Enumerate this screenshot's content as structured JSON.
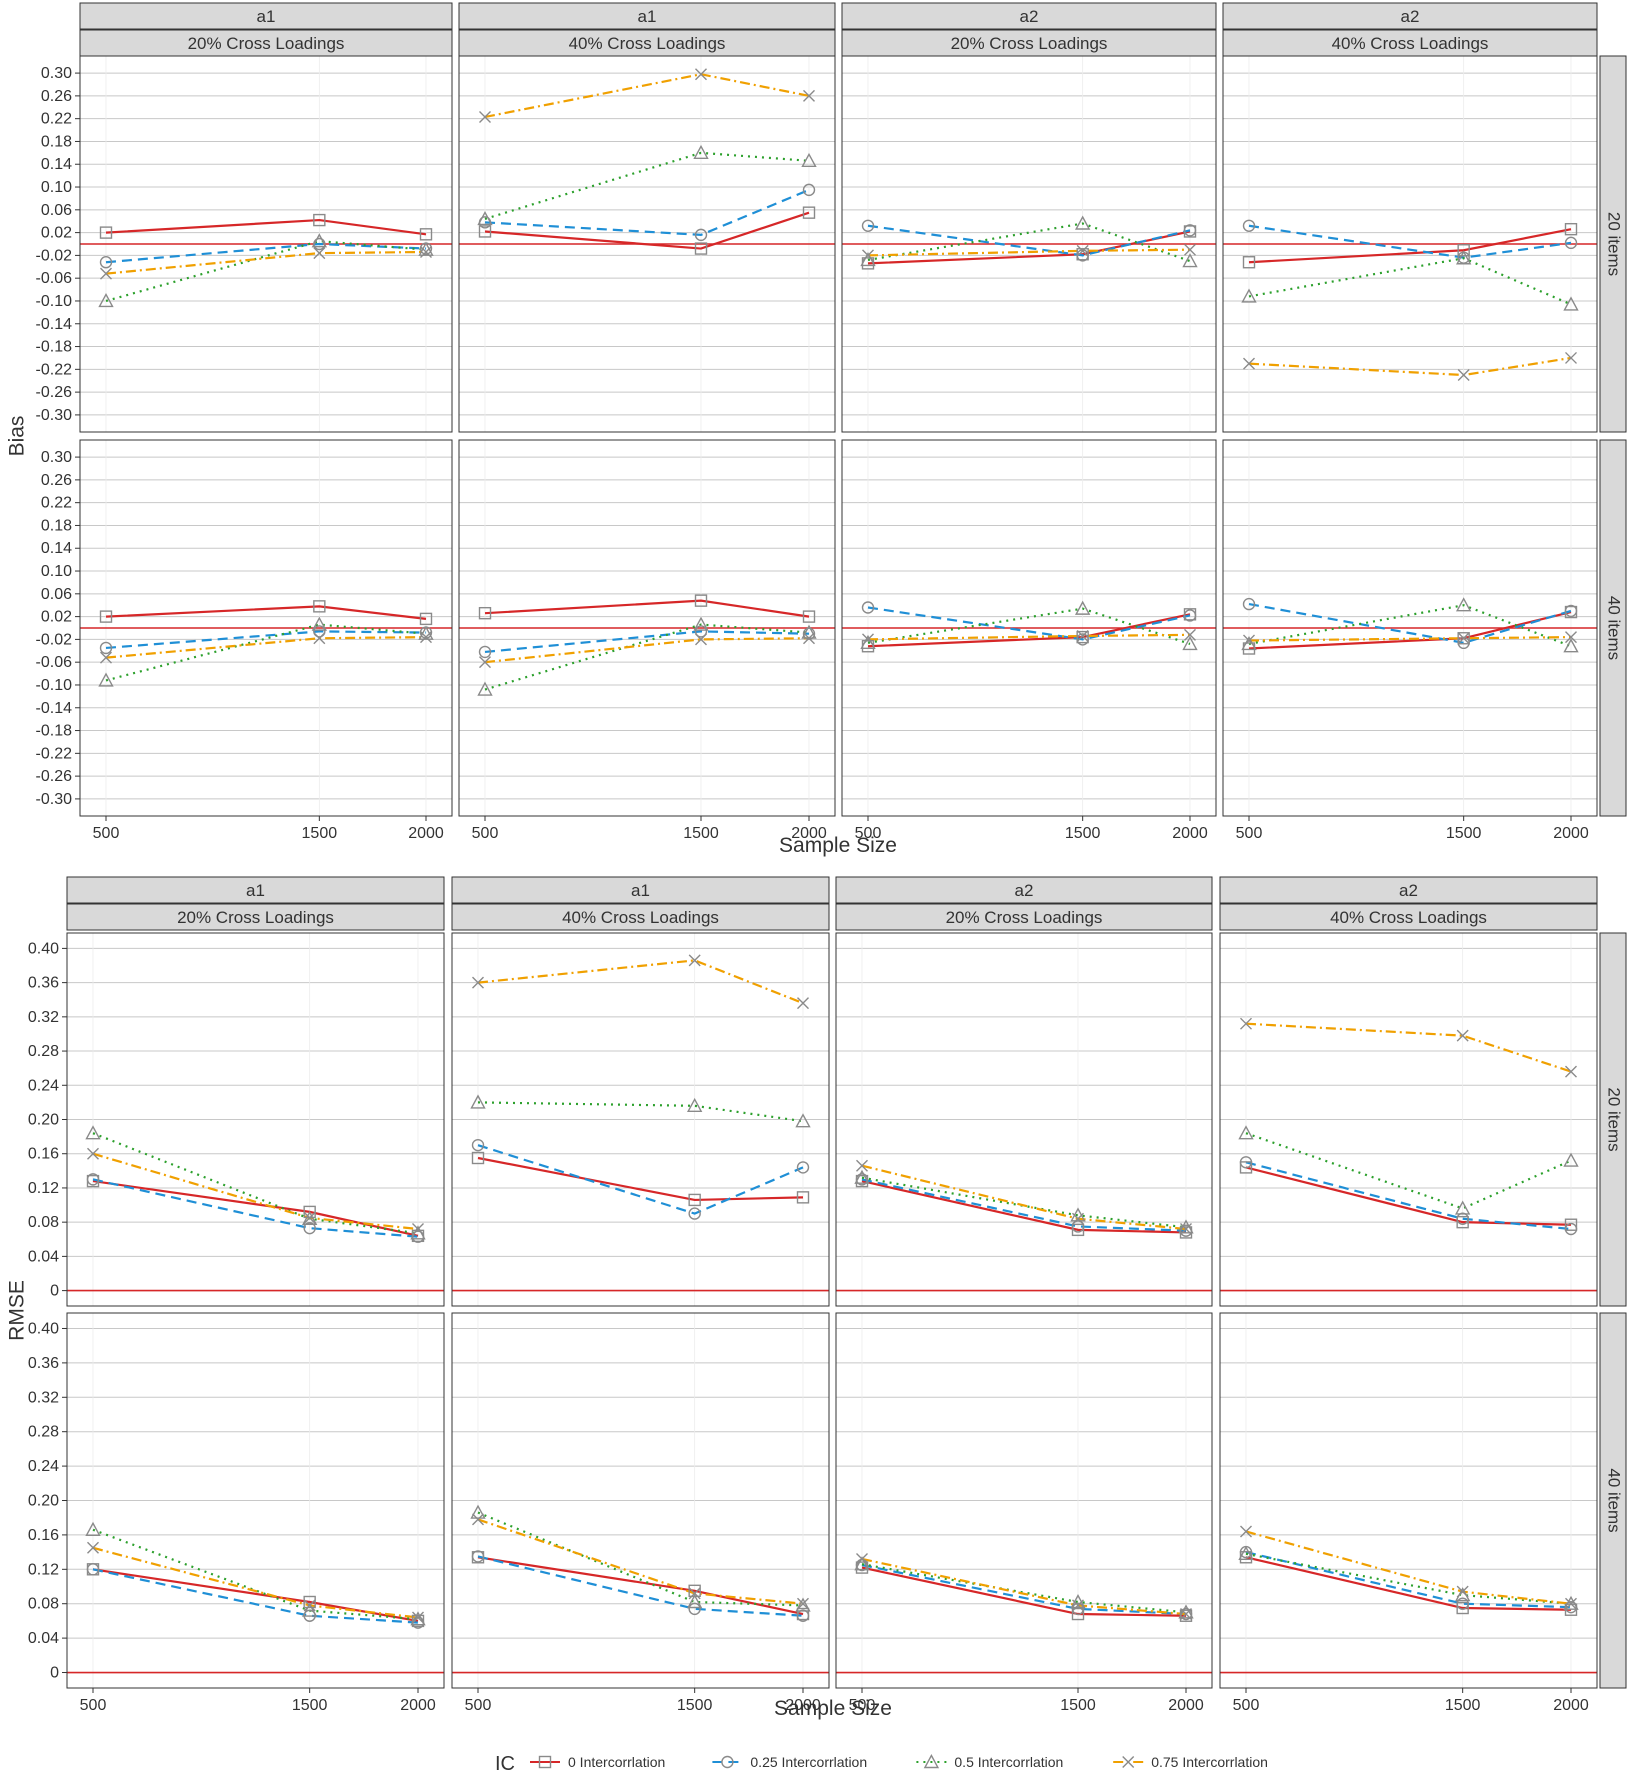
{
  "figure": {
    "legend_title": "IC",
    "legend_position": "bottom",
    "series_styles": [
      {
        "name": "0 Intercorrlation",
        "color": "#d62728",
        "dash": "",
        "marker": "square"
      },
      {
        "name": "0.25 Intercorrlation",
        "color": "#1f8fd6",
        "dash": "10,6",
        "marker": "circle"
      },
      {
        "name": "0.5 Intercorrlation",
        "color": "#2ca02c",
        "dash": "2,5",
        "marker": "triangle"
      },
      {
        "name": "0.75 Intercorrlation",
        "color": "#f0a000",
        "dash": "10,4,2,4",
        "marker": "x"
      }
    ],
    "reference_line_color": "#d62728"
  },
  "chart_data": [
    {
      "type": "line",
      "ylabel": "Bias",
      "xlabel": "Sample Size",
      "x": [
        500,
        1500,
        2000
      ],
      "xticks": [
        "500",
        "1500",
        "2000"
      ],
      "ylim": [
        -0.33,
        0.33
      ],
      "yticks": [
        "0.30",
        "0.26",
        "0.22",
        "0.18",
        "0.14",
        "0.10",
        "0.06",
        "0.02",
        "-0.02",
        "-0.06",
        "-0.10",
        "-0.14",
        "-0.18",
        "-0.22",
        "-0.26",
        "-0.30"
      ],
      "ytick_values": [
        0.3,
        0.26,
        0.22,
        0.18,
        0.14,
        0.1,
        0.06,
        0.02,
        -0.02,
        -0.06,
        -0.1,
        -0.14,
        -0.18,
        -0.22,
        -0.26,
        -0.3
      ],
      "reference_line": -0.0,
      "columns": [
        {
          "param": "a1",
          "condition": "20% Cross Loadings"
        },
        {
          "param": "a1",
          "condition": "40% Cross Loadings"
        },
        {
          "param": "a2",
          "condition": "20% Cross Loadings"
        },
        {
          "param": "a2",
          "condition": "40% Cross Loadings"
        }
      ],
      "rows": [
        "20 items",
        "40 items"
      ],
      "grid": true,
      "panels": [
        [
          {
            "series": [
              {
                "name": "0 Intercorrlation",
                "values": [
                  0.02,
                  0.042,
                  0.017
                ]
              },
              {
                "name": "0.25 Intercorrlation",
                "values": [
                  -0.032,
                  -0.0,
                  -0.008
                ]
              },
              {
                "name": "0.5 Intercorrlation",
                "values": [
                  -0.1,
                  0.005,
                  -0.01
                ]
              },
              {
                "name": "0.75 Intercorrlation",
                "values": [
                  -0.052,
                  -0.016,
                  -0.014
                ]
              }
            ]
          },
          {
            "series": [
              {
                "name": "0 Intercorrlation",
                "values": [
                  0.022,
                  -0.008,
                  0.055
                ]
              },
              {
                "name": "0.25 Intercorrlation",
                "values": [
                  0.038,
                  0.016,
                  0.095
                ]
              },
              {
                "name": "0.5 Intercorrlation",
                "values": [
                  0.044,
                  0.16,
                  0.146
                ]
              },
              {
                "name": "0.75 Intercorrlation",
                "values": [
                  0.223,
                  0.298,
                  0.26
                ]
              }
            ]
          },
          {
            "series": [
              {
                "name": "0 Intercorrlation",
                "values": [
                  -0.034,
                  -0.018,
                  0.022
                ]
              },
              {
                "name": "0.25 Intercorrlation",
                "values": [
                  0.032,
                  -0.02,
                  0.024
                ]
              },
              {
                "name": "0.5 Intercorrlation",
                "values": [
                  -0.028,
                  0.036,
                  -0.03
                ]
              },
              {
                "name": "0.75 Intercorrlation",
                "values": [
                  -0.02,
                  -0.012,
                  -0.01
                ]
              }
            ]
          },
          {
            "series": [
              {
                "name": "0 Intercorrlation",
                "values": [
                  -0.032,
                  -0.011,
                  0.026
                ]
              },
              {
                "name": "0.25 Intercorrlation",
                "values": [
                  0.032,
                  -0.024,
                  0.002
                ]
              },
              {
                "name": "0.5 Intercorrlation",
                "values": [
                  -0.092,
                  -0.025,
                  -0.106
                ]
              },
              {
                "name": "0.75 Intercorrlation",
                "values": [
                  -0.21,
                  -0.23,
                  -0.2
                ]
              }
            ]
          }
        ],
        [
          {
            "series": [
              {
                "name": "0 Intercorrlation",
                "values": [
                  0.02,
                  0.038,
                  0.016
                ]
              },
              {
                "name": "0.25 Intercorrlation",
                "values": [
                  -0.035,
                  -0.006,
                  -0.008
                ]
              },
              {
                "name": "0.5 Intercorrlation",
                "values": [
                  -0.092,
                  0.006,
                  -0.01
                ]
              },
              {
                "name": "0.75 Intercorrlation",
                "values": [
                  -0.052,
                  -0.018,
                  -0.016
                ]
              }
            ]
          },
          {
            "series": [
              {
                "name": "0 Intercorrlation",
                "values": [
                  0.026,
                  0.048,
                  0.02
                ]
              },
              {
                "name": "0.25 Intercorrlation",
                "values": [
                  -0.042,
                  -0.006,
                  -0.01
                ]
              },
              {
                "name": "0.5 Intercorrlation",
                "values": [
                  -0.108,
                  0.006,
                  -0.008
                ]
              },
              {
                "name": "0.75 Intercorrlation",
                "values": [
                  -0.06,
                  -0.02,
                  -0.018
                ]
              }
            ]
          },
          {
            "series": [
              {
                "name": "0 Intercorrlation",
                "values": [
                  -0.032,
                  -0.016,
                  0.024
                ]
              },
              {
                "name": "0.25 Intercorrlation",
                "values": [
                  0.036,
                  -0.02,
                  0.022
                ]
              },
              {
                "name": "0.5 Intercorrlation",
                "values": [
                  -0.026,
                  0.034,
                  -0.028
                ]
              },
              {
                "name": "0.75 Intercorrlation",
                "values": [
                  -0.02,
                  -0.014,
                  -0.012
                ]
              }
            ]
          },
          {
            "series": [
              {
                "name": "0 Intercorrlation",
                "values": [
                  -0.036,
                  -0.018,
                  0.028
                ]
              },
              {
                "name": "0.25 Intercorrlation",
                "values": [
                  0.042,
                  -0.026,
                  0.03
                ]
              },
              {
                "name": "0.5 Intercorrlation",
                "values": [
                  -0.028,
                  0.04,
                  -0.032
                ]
              },
              {
                "name": "0.75 Intercorrlation",
                "values": [
                  -0.022,
                  -0.018,
                  -0.016
                ]
              }
            ]
          }
        ]
      ]
    },
    {
      "type": "line",
      "ylabel": "RMSE",
      "xlabel": "Sample Size",
      "x": [
        500,
        1500,
        2000
      ],
      "xticks": [
        "500",
        "1500",
        "2000"
      ],
      "ylim": [
        -0.018,
        0.418
      ],
      "yticks": [
        "0.40",
        "0.36",
        "0.32",
        "0.28",
        "0.24",
        "0.20",
        "0.16",
        "0.12",
        "0.08",
        "0.04",
        "0"
      ],
      "ytick_values": [
        0.4,
        0.36,
        0.32,
        0.28,
        0.24,
        0.2,
        0.16,
        0.12,
        0.08,
        0.04,
        0
      ],
      "reference_line": 0,
      "columns": [
        {
          "param": "a1",
          "condition": "20% Cross Loadings"
        },
        {
          "param": "a1",
          "condition": "40% Cross Loadings"
        },
        {
          "param": "a2",
          "condition": "20% Cross Loadings"
        },
        {
          "param": "a2",
          "condition": "40% Cross Loadings"
        }
      ],
      "rows": [
        "20 items",
        "40 items"
      ],
      "grid": true,
      "panels": [
        [
          {
            "series": [
              {
                "name": "0 Intercorrlation",
                "values": [
                  0.128,
                  0.092,
                  0.064
                ]
              },
              {
                "name": "0.25 Intercorrlation",
                "values": [
                  0.13,
                  0.073,
                  0.063
                ]
              },
              {
                "name": "0.5 Intercorrlation",
                "values": [
                  0.184,
                  0.084,
                  0.067
                ]
              },
              {
                "name": "0.75 Intercorrlation",
                "values": [
                  0.16,
                  0.085,
                  0.072
                ]
              }
            ]
          },
          {
            "series": [
              {
                "name": "0 Intercorrlation",
                "values": [
                  0.155,
                  0.106,
                  0.109
                ]
              },
              {
                "name": "0.25 Intercorrlation",
                "values": [
                  0.17,
                  0.09,
                  0.144
                ]
              },
              {
                "name": "0.5 Intercorrlation",
                "values": [
                  0.22,
                  0.216,
                  0.198
                ]
              },
              {
                "name": "0.75 Intercorrlation",
                "values": [
                  0.36,
                  0.386,
                  0.336
                ]
              }
            ]
          },
          {
            "series": [
              {
                "name": "0 Intercorrlation",
                "values": [
                  0.128,
                  0.071,
                  0.068
                ]
              },
              {
                "name": "0.25 Intercorrlation",
                "values": [
                  0.13,
                  0.075,
                  0.07
                ]
              },
              {
                "name": "0.5 Intercorrlation",
                "values": [
                  0.132,
                  0.088,
                  0.074
                ]
              },
              {
                "name": "0.75 Intercorrlation",
                "values": [
                  0.146,
                  0.084,
                  0.072
                ]
              }
            ]
          },
          {
            "series": [
              {
                "name": "0 Intercorrlation",
                "values": [
                  0.144,
                  0.08,
                  0.077
                ]
              },
              {
                "name": "0.25 Intercorrlation",
                "values": [
                  0.15,
                  0.084,
                  0.072
                ]
              },
              {
                "name": "0.5 Intercorrlation",
                "values": [
                  0.184,
                  0.096,
                  0.152
                ]
              },
              {
                "name": "0.75 Intercorrlation",
                "values": [
                  0.312,
                  0.298,
                  0.256
                ]
              }
            ]
          }
        ],
        [
          {
            "series": [
              {
                "name": "0 Intercorrlation",
                "values": [
                  0.12,
                  0.082,
                  0.06
                ]
              },
              {
                "name": "0.25 Intercorrlation",
                "values": [
                  0.12,
                  0.066,
                  0.058
                ]
              },
              {
                "name": "0.5 Intercorrlation",
                "values": [
                  0.166,
                  0.072,
                  0.062
                ]
              },
              {
                "name": "0.75 Intercorrlation",
                "values": [
                  0.145,
                  0.078,
                  0.064
                ]
              }
            ]
          },
          {
            "series": [
              {
                "name": "0 Intercorrlation",
                "values": [
                  0.134,
                  0.095,
                  0.068
                ]
              },
              {
                "name": "0.25 Intercorrlation",
                "values": [
                  0.135,
                  0.074,
                  0.066
                ]
              },
              {
                "name": "0.5 Intercorrlation",
                "values": [
                  0.186,
                  0.082,
                  0.078
                ]
              },
              {
                "name": "0.75 Intercorrlation",
                "values": [
                  0.178,
                  0.092,
                  0.08
                ]
              }
            ]
          },
          {
            "series": [
              {
                "name": "0 Intercorrlation",
                "values": [
                  0.122,
                  0.068,
                  0.066
                ]
              },
              {
                "name": "0.25 Intercorrlation",
                "values": [
                  0.125,
                  0.074,
                  0.068
                ]
              },
              {
                "name": "0.5 Intercorrlation",
                "values": [
                  0.126,
                  0.082,
                  0.07
                ]
              },
              {
                "name": "0.75 Intercorrlation",
                "values": [
                  0.132,
                  0.078,
                  0.068
                ]
              }
            ]
          },
          {
            "series": [
              {
                "name": "0 Intercorrlation",
                "values": [
                  0.134,
                  0.075,
                  0.073
                ]
              },
              {
                "name": "0.25 Intercorrlation",
                "values": [
                  0.14,
                  0.08,
                  0.076
                ]
              },
              {
                "name": "0.5 Intercorrlation",
                "values": [
                  0.138,
                  0.09,
                  0.08
                ]
              },
              {
                "name": "0.75 Intercorrlation",
                "values": [
                  0.164,
                  0.094,
                  0.08
                ]
              }
            ]
          }
        ]
      ]
    }
  ]
}
